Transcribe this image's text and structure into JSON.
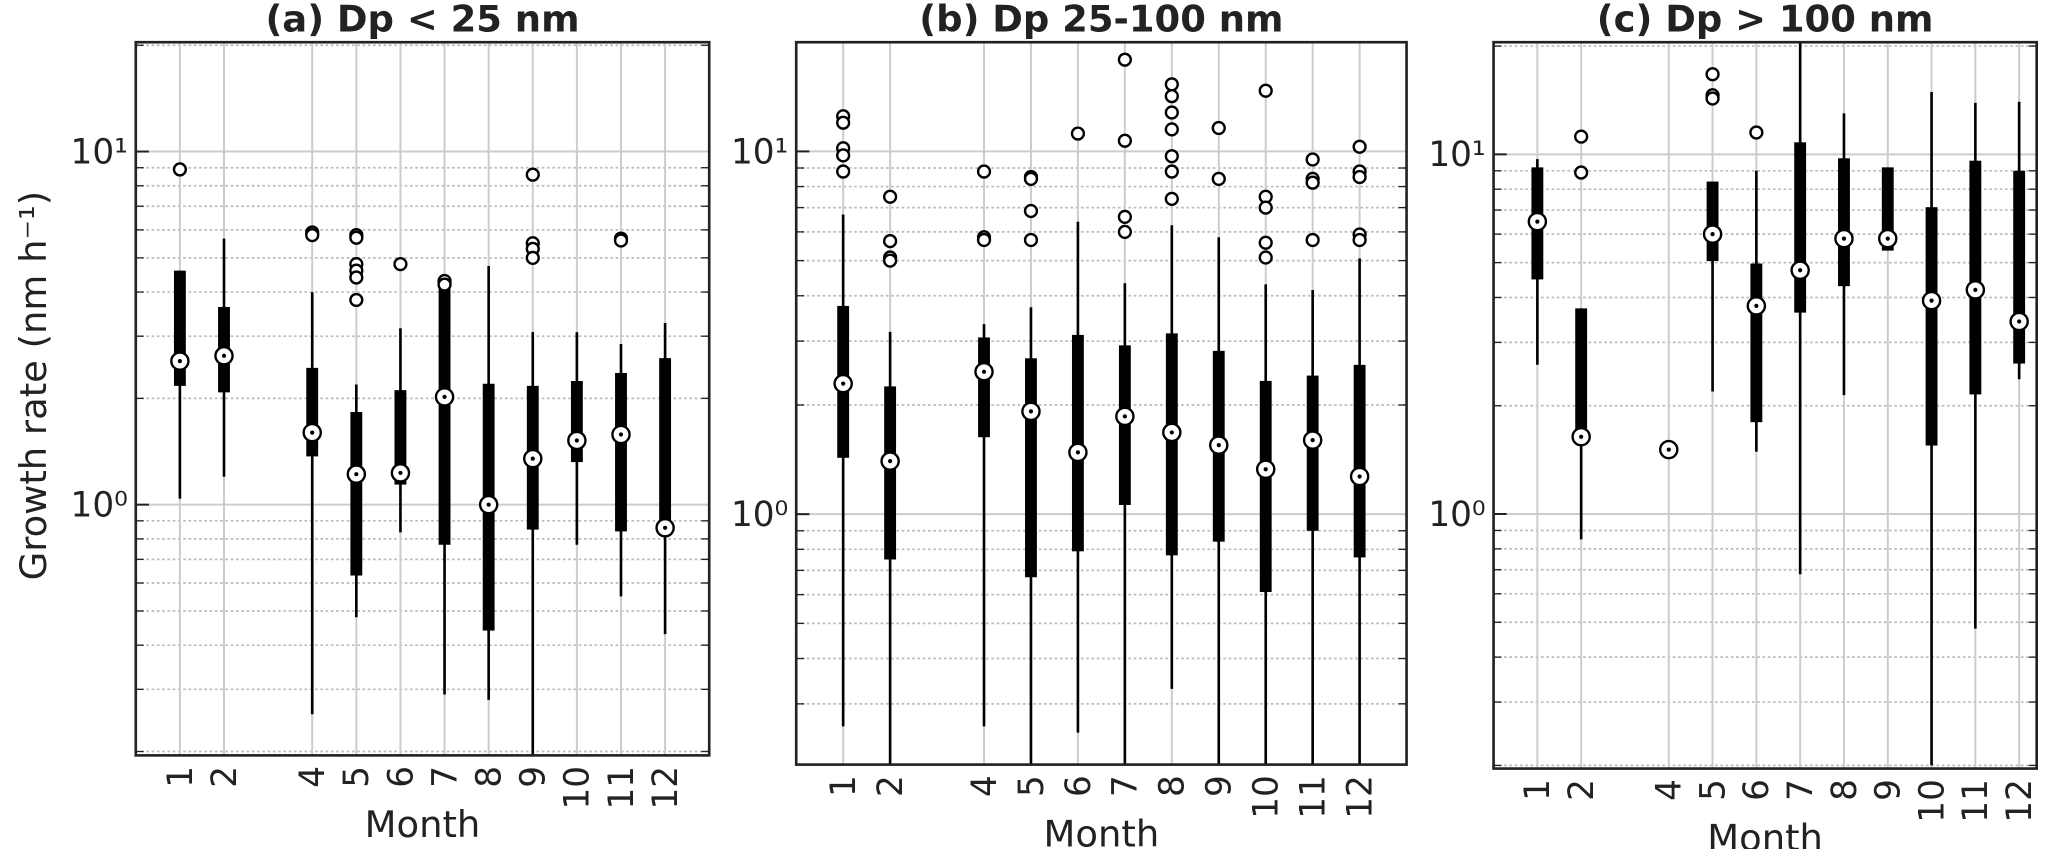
{
  "chart_data": [
    {
      "type": "box",
      "title": "(a) Dp < 25 nm",
      "xlabel": "Month",
      "ylabel": "Growth rate (nm h⁻¹)",
      "xlim": [
        0,
        13
      ],
      "xticks": [
        1,
        2,
        4,
        5,
        6,
        7,
        8,
        9,
        10,
        11,
        12
      ],
      "ylim": [
        0.195,
        20.4
      ],
      "log_y": true,
      "grid": true,
      "minor_grid": true,
      "yticks": [
        {
          "value": 1,
          "label": "10⁰"
        },
        {
          "value": 10,
          "label": "10¹"
        }
      ],
      "boxes": [
        {
          "x": 1,
          "low": 1.04,
          "q1": 2.17,
          "median": 2.55,
          "q3": 4.6,
          "high": 4.6,
          "outliers": [
            8.9
          ]
        },
        {
          "x": 2,
          "low": 1.2,
          "q1": 2.08,
          "median": 2.64,
          "q3": 3.63,
          "high": 5.67,
          "outliers": []
        },
        {
          "x": 4,
          "low": 0.255,
          "q1": 1.37,
          "median": 1.6,
          "q3": 2.44,
          "high": 4.0,
          "outliers": [
            5.9,
            5.8
          ]
        },
        {
          "x": 5,
          "low": 0.48,
          "q1": 0.63,
          "median": 1.22,
          "q3": 1.83,
          "high": 2.19,
          "outliers": [
            5.8,
            5.7,
            4.8,
            4.6,
            4.4,
            3.8
          ]
        },
        {
          "x": 6,
          "low": 0.835,
          "q1": 1.14,
          "median": 1.23,
          "q3": 2.11,
          "high": 3.16,
          "outliers": [
            4.8
          ]
        },
        {
          "x": 7,
          "low": 0.29,
          "q1": 0.77,
          "median": 2.02,
          "q3": 4.2,
          "high": 4.2,
          "outliers": [
            4.3,
            4.2
          ]
        },
        {
          "x": 8,
          "low": 0.28,
          "q1": 0.44,
          "median": 1.0,
          "q3": 2.2,
          "high": 4.74,
          "outliers": []
        },
        {
          "x": 9,
          "low": 0.19,
          "q1": 0.85,
          "median": 1.35,
          "q3": 2.17,
          "high": 3.08,
          "outliers": [
            8.6,
            5.5,
            5.3,
            5.0
          ]
        },
        {
          "x": 10,
          "low": 0.77,
          "q1": 1.32,
          "median": 1.52,
          "q3": 2.24,
          "high": 3.08,
          "outliers": []
        },
        {
          "x": 11,
          "low": 0.55,
          "q1": 0.84,
          "median": 1.58,
          "q3": 2.36,
          "high": 2.85,
          "outliers": [
            5.67,
            5.6
          ]
        },
        {
          "x": 12,
          "low": 0.43,
          "q1": 0.86,
          "median": 0.86,
          "q3": 2.6,
          "high": 3.27,
          "outliers": []
        }
      ]
    },
    {
      "type": "box",
      "title": "(b) Dp 25-100 nm",
      "xlabel": "Month",
      "xlim": [
        0,
        13
      ],
      "xticks": [
        1,
        2,
        4,
        5,
        6,
        7,
        8,
        9,
        10,
        11,
        12
      ],
      "ylim": [
        0.204,
        20
      ],
      "log_y": true,
      "grid": true,
      "minor_grid": true,
      "yticks": [
        {
          "value": 1,
          "label": "10⁰"
        },
        {
          "value": 10,
          "label": "10¹"
        }
      ],
      "boxes": [
        {
          "x": 1,
          "low": 0.26,
          "q1": 1.43,
          "median": 2.29,
          "q3": 3.75,
          "high": 6.7,
          "outliers": [
            12.5,
            12.0,
            10.2,
            9.75,
            8.8
          ]
        },
        {
          "x": 2,
          "low": 0.2,
          "q1": 0.75,
          "median": 1.4,
          "q3": 2.25,
          "high": 3.18,
          "outliers": [
            7.5,
            5.66,
            5.1,
            5.0
          ]
        },
        {
          "x": 4,
          "low": 0.26,
          "q1": 1.63,
          "median": 2.47,
          "q3": 3.07,
          "high": 3.34,
          "outliers": [
            8.8,
            5.8,
            5.7
          ]
        },
        {
          "x": 5,
          "low": 0.2,
          "q1": 0.67,
          "median": 1.92,
          "q3": 2.69,
          "high": 3.72,
          "outliers": [
            8.5,
            8.4,
            6.85,
            5.7
          ]
        },
        {
          "x": 6,
          "low": 0.25,
          "q1": 0.79,
          "median": 1.48,
          "q3": 3.12,
          "high": 6.4,
          "outliers": [
            11.2
          ]
        },
        {
          "x": 7,
          "low": 0.2,
          "q1": 1.06,
          "median": 1.86,
          "q3": 2.92,
          "high": 4.33,
          "outliers": [
            17.9,
            10.7,
            6.6,
            6.0
          ]
        },
        {
          "x": 8,
          "low": 0.33,
          "q1": 0.77,
          "median": 1.68,
          "q3": 3.15,
          "high": 6.26,
          "outliers": [
            15.3,
            14.2,
            12.8,
            11.5,
            9.7,
            8.8,
            7.4
          ]
        },
        {
          "x": 9,
          "low": 0.2,
          "q1": 0.84,
          "median": 1.55,
          "q3": 2.82,
          "high": 5.8,
          "outliers": [
            11.6,
            8.4
          ]
        },
        {
          "x": 10,
          "low": 0.2,
          "q1": 0.61,
          "median": 1.33,
          "q3": 2.33,
          "high": 4.3,
          "outliers": [
            14.7,
            7.5,
            7.0,
            5.6,
            5.1
          ]
        },
        {
          "x": 11,
          "low": 0.2,
          "q1": 0.9,
          "median": 1.6,
          "q3": 2.41,
          "high": 4.15,
          "outliers": [
            9.5,
            8.4,
            8.2,
            5.7
          ]
        },
        {
          "x": 12,
          "low": 0.2,
          "q1": 0.76,
          "median": 1.27,
          "q3": 2.58,
          "high": 5.07,
          "outliers": [
            10.3,
            8.8,
            8.5,
            5.9,
            5.7
          ]
        }
      ]
    },
    {
      "type": "box",
      "title": "(c) Dp > 100 nm",
      "xlabel": "Month",
      "xlim": [
        0,
        12.4
      ],
      "xticks": [
        1,
        2,
        4,
        5,
        6,
        7,
        8,
        9,
        10,
        11,
        12
      ],
      "ylim": [
        0.196,
        20.5
      ],
      "log_y": true,
      "grid": true,
      "minor_grid": true,
      "yticks": [
        {
          "value": 1,
          "label": "10⁰"
        },
        {
          "value": 10,
          "label": "10¹"
        }
      ],
      "boxes": [
        {
          "x": 1,
          "low": 2.6,
          "q1": 4.49,
          "median": 6.5,
          "q3": 9.2,
          "high": 9.7,
          "outliers": []
        },
        {
          "x": 2,
          "low": 0.85,
          "q1": 1.64,
          "median": 1.64,
          "q3": 3.73,
          "high": 3.73,
          "outliers": [
            11.2,
            8.9
          ]
        },
        {
          "x": 4,
          "low": 1.51,
          "q1": 1.51,
          "median": 1.51,
          "q3": 1.51,
          "high": 1.51,
          "outliers": []
        },
        {
          "x": 5,
          "low": 2.19,
          "q1": 5.05,
          "median": 6.0,
          "q3": 8.4,
          "high": 8.4,
          "outliers": [
            16.7,
            14.6,
            14.3
          ]
        },
        {
          "x": 6,
          "low": 1.49,
          "q1": 1.8,
          "median": 3.79,
          "q3": 4.97,
          "high": 9.0,
          "outliers": [
            11.5
          ]
        },
        {
          "x": 7,
          "low": 0.68,
          "q1": 3.63,
          "median": 4.76,
          "q3": 10.8,
          "high": 20.5,
          "outliers": []
        },
        {
          "x": 8,
          "low": 2.14,
          "q1": 4.3,
          "median": 5.83,
          "q3": 9.75,
          "high": 13,
          "outliers": []
        },
        {
          "x": 9,
          "low": 5.4,
          "q1": 5.4,
          "median": 5.83,
          "q3": 9.2,
          "high": 9.2,
          "outliers": []
        },
        {
          "x": 10,
          "low": 0.2,
          "q1": 1.55,
          "median": 3.92,
          "q3": 7.13,
          "high": 14.9,
          "outliers": []
        },
        {
          "x": 11,
          "low": 0.48,
          "q1": 2.15,
          "median": 4.2,
          "q3": 9.6,
          "high": 13.9,
          "outliers": []
        },
        {
          "x": 12,
          "low": 2.37,
          "q1": 2.62,
          "median": 3.43,
          "q3": 9.0,
          "high": 14,
          "outliers": []
        }
      ]
    }
  ]
}
